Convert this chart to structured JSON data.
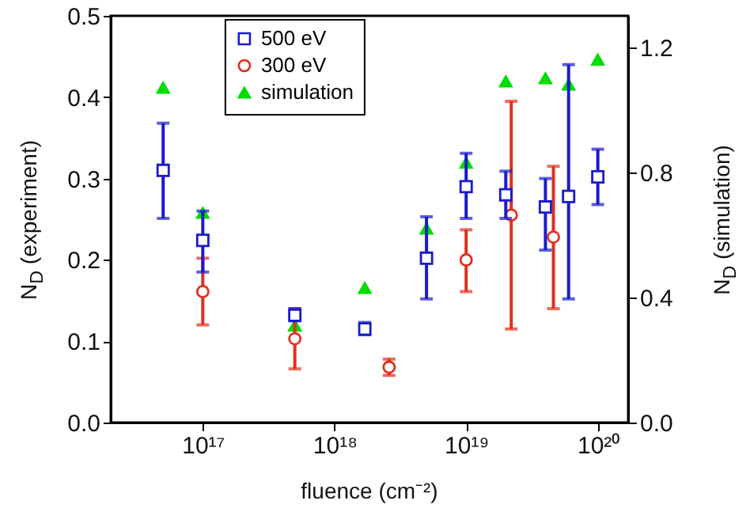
{
  "chart_data": {
    "type": "scatter",
    "xlabel": "fluence (cm⁻²)",
    "ylabel": "N$_{D}$ (experiment)",
    "y2label": "N$_{D}$ (simulation)",
    "log": "x",
    "grid": false,
    "legend": "top",
    "xlim": [
      2e+16,
      1.7e+20
    ],
    "xticks": [
      {
        "value": 1e+17,
        "label": "10¹⁷"
      },
      {
        "value": 1e+18,
        "label": "10¹⁸"
      },
      {
        "value": 1e+19,
        "label": "10¹⁹"
      },
      {
        "value": 1e+20,
        "label": "10²⁰"
      }
    ],
    "ylim": [
      0,
      0.5
    ],
    "yticks": [
      {
        "value": 0,
        "label": "0.0"
      },
      {
        "value": 0.1,
        "label": "0.1"
      },
      {
        "value": 0.2,
        "label": "0.2"
      },
      {
        "value": 0.3,
        "label": "0.3"
      },
      {
        "value": 0.4,
        "label": "0.4"
      },
      {
        "value": 0.5,
        "label": "0.5"
      }
    ],
    "y2lim": [
      0,
      1.3
    ],
    "y2ticks": [
      {
        "value": 0,
        "label": "0.0"
      },
      {
        "value": 0.4,
        "label": "0.4"
      },
      {
        "value": 0.8,
        "label": "0.8"
      },
      {
        "value": 1.2,
        "label": "1.2"
      }
    ],
    "series": [
      {
        "name": "500 eV",
        "color": "#1a1acc",
        "marker": "square",
        "x": [
          5e+16,
          1e+17,
          5e+17,
          1.7e+18,
          5e+18,
          1e+19,
          2e+19,
          4e+19,
          6e+19,
          1e+20
        ],
        "values": [
          0.31,
          0.224,
          0.132,
          0.115,
          0.202,
          0.29,
          0.28,
          0.265,
          0.278,
          0.302
        ],
        "errors": [
          [
            0.251,
            0.368
          ],
          [
            0.185,
            0.26
          ],
          [
            0.125,
            0.14
          ],
          [
            0.108,
            0.123
          ],
          [
            0.152,
            0.253
          ],
          [
            0.251,
            0.331
          ],
          [
            0.251,
            0.309
          ],
          [
            0.212,
            0.3
          ],
          [
            0.152,
            0.44
          ],
          [
            0.268,
            0.336
          ]
        ]
      },
      {
        "name": "300 eV",
        "color": "#e0301e",
        "marker": "circle",
        "x": [
          1e+17,
          5e+17,
          2.6e+18,
          1e+19,
          2.2e+19,
          4.6e+19
        ],
        "values": [
          0.161,
          0.103,
          0.068,
          0.2,
          0.255,
          0.228
        ],
        "errors": [
          [
            0.12,
            0.202
          ],
          [
            0.066,
            0.14
          ],
          [
            0.058,
            0.078
          ],
          [
            0.161,
            0.237
          ],
          [
            0.115,
            0.395
          ],
          [
            0.14,
            0.315
          ]
        ]
      },
      {
        "name": "simulation",
        "color": "#00dd00",
        "marker": "triangle",
        "axis": "y2",
        "x": [
          5e+16,
          1e+17,
          5e+17,
          1.7e+18,
          5e+18,
          1e+19,
          2e+19,
          4e+19,
          6e+19,
          1e+20
        ],
        "values": [
          1.07,
          0.67,
          0.31,
          0.43,
          0.62,
          0.83,
          1.09,
          1.1,
          1.08,
          1.16
        ]
      }
    ]
  }
}
